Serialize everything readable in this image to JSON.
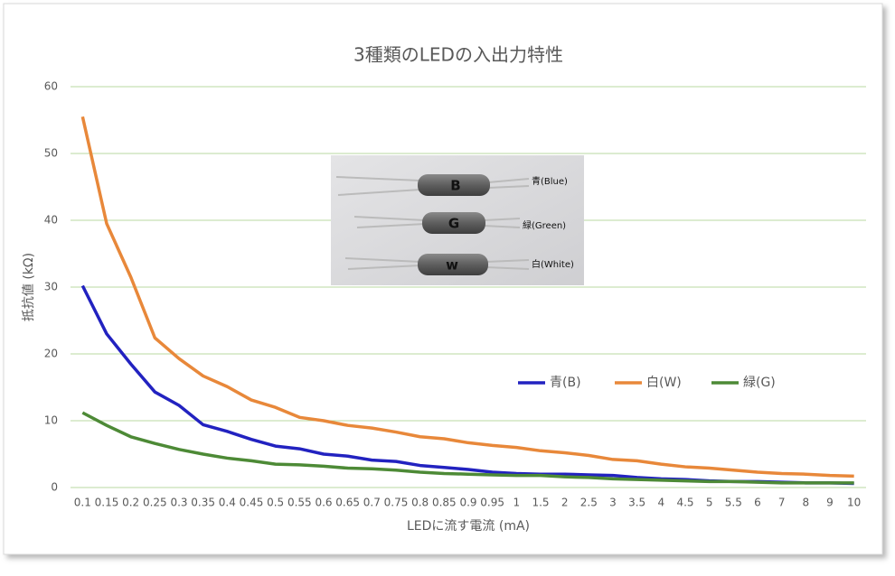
{
  "chart_data": {
    "type": "line",
    "title": "3種類のLEDの入出力特性",
    "x_label": "LEDに流す電流 (mA)",
    "y_label": "抵抗値 (kΩ)",
    "categories": [
      "0.1",
      "0.15",
      "0.2",
      "0.25",
      "0.3",
      "0.35",
      "0.4",
      "0.45",
      "0.5",
      "0.55",
      "0.6",
      "0.65",
      "0.7",
      "0.75",
      "0.8",
      "0.85",
      "0.9",
      "0.95",
      "1",
      "1.5",
      "2",
      "2.5",
      "3",
      "3.5",
      "4",
      "4.5",
      "5",
      "5.5",
      "6",
      "7",
      "8",
      "9",
      "10"
    ],
    "series": [
      {
        "name": "青(B)",
        "color": "#2222c0",
        "values": [
          30.2,
          23,
          18.5,
          14.3,
          12.3,
          9.4,
          8.4,
          7.2,
          6.2,
          5.8,
          5.0,
          4.7,
          4.1,
          3.9,
          3.3,
          3.0,
          2.7,
          2.3,
          2.1,
          2.0,
          2.0,
          1.9,
          1.8,
          1.5,
          1.3,
          1.2,
          1.0,
          0.9,
          0.9,
          0.8,
          0.7,
          0.7,
          0.6
        ]
      },
      {
        "name": "白(W)",
        "color": "#e8883a",
        "values": [
          55.5,
          39.5,
          31.5,
          22.4,
          19.3,
          16.7,
          15.1,
          13.1,
          12.0,
          10.5,
          10.0,
          9.3,
          8.9,
          8.3,
          7.6,
          7.3,
          6.7,
          6.3,
          6.0,
          5.5,
          5.2,
          4.8,
          4.2,
          4.0,
          3.5,
          3.1,
          2.9,
          2.6,
          2.3,
          2.1,
          2.0,
          1.8,
          1.7
        ]
      },
      {
        "name": "緑(G)",
        "color": "#4d8a36",
        "values": [
          11.2,
          9.3,
          7.6,
          6.6,
          5.7,
          5.0,
          4.4,
          4.0,
          3.5,
          3.4,
          3.2,
          2.9,
          2.8,
          2.6,
          2.3,
          2.1,
          2.0,
          1.9,
          1.8,
          1.8,
          1.6,
          1.5,
          1.3,
          1.2,
          1.1,
          1.0,
          0.9,
          0.9,
          0.8,
          0.7,
          0.7,
          0.7,
          0.7
        ]
      }
    ],
    "ylim": [
      0,
      60
    ],
    "yticks": [
      0,
      10,
      20,
      30,
      40,
      50,
      60
    ],
    "grid": true,
    "grid_color": "#b8d9a0",
    "photo_letters": [
      "B",
      "G",
      "w"
    ],
    "photo_labels": [
      "青(Blue)",
      "緑(Green)",
      "白(White)"
    ]
  }
}
